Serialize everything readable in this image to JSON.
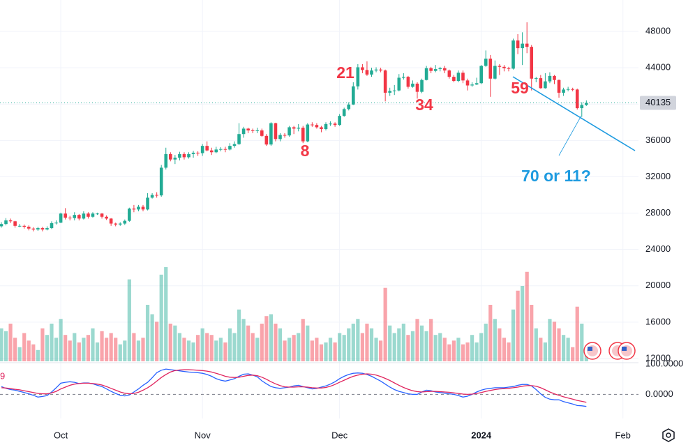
{
  "chart_data": {
    "type": "candlestick",
    "categories": [
      null,
      null,
      null,
      null,
      null,
      null,
      null,
      null,
      null,
      null,
      null,
      null,
      null,
      null,
      null,
      null,
      null,
      null,
      null,
      null,
      null,
      null,
      null,
      null,
      null,
      null,
      null,
      null,
      null,
      null,
      null,
      null,
      null,
      null,
      null,
      null,
      null,
      null,
      null,
      null,
      null,
      null,
      null,
      null,
      null,
      null,
      null,
      null,
      null,
      null,
      null,
      null,
      null,
      null,
      null,
      null,
      null,
      null,
      null,
      null,
      null,
      null,
      null,
      null,
      null,
      null,
      null,
      null,
      null,
      null,
      null,
      null,
      null,
      null,
      null,
      null,
      null,
      null,
      null,
      null,
      null,
      null,
      null,
      null,
      null,
      null,
      null,
      null,
      null,
      null,
      null,
      null,
      null,
      null,
      null,
      null,
      null,
      null,
      null,
      null,
      null,
      null,
      null,
      null,
      null,
      null,
      null,
      null,
      null,
      null,
      null,
      null,
      null,
      null,
      null,
      null,
      null,
      null,
      null,
      null,
      null,
      null,
      null,
      null,
      null,
      null,
      null,
      null,
      null
    ],
    "open": [
      26550,
      26800,
      27200,
      27100,
      26600,
      26600,
      26500,
      26300,
      26200,
      26350,
      26200,
      26350,
      26900,
      26950,
      27950,
      27500,
      27450,
      27800,
      27400,
      27950,
      27600,
      27950,
      27950,
      27600,
      27400,
      26850,
      26750,
      26850,
      27150,
      28500,
      28400,
      28700,
      28400,
      29700,
      30000,
      29950,
      33000,
      34500,
      33900,
      34100,
      34500,
      34150,
      34500,
      34650,
      34600,
      35400,
      34900,
      34700,
      35000,
      35050,
      35000,
      35400,
      35600,
      36700,
      37300,
      37100,
      37050,
      37100,
      36500,
      35550,
      37900,
      36150,
      36600,
      36550,
      37450,
      37300,
      37400,
      35900,
      37750,
      37700,
      37450,
      37250,
      37800,
      37850,
      37700,
      38700,
      39450,
      39950,
      41950,
      44050,
      43750,
      43250,
      43700,
      43800,
      43700,
      41250,
      41450,
      41500,
      42900,
      43000,
      41900,
      42250,
      41350,
      42650,
      43950,
      43650,
      43850,
      43950,
      43700,
      43000,
      42550,
      43450,
      42600,
      42050,
      42150,
      42300,
      44200,
      45000,
      42800,
      44200,
      44100,
      43950,
      43900,
      47000,
      46150,
      46650,
      46300,
      42800,
      42850,
      41750,
      42500,
      43100,
      42650,
      41250,
      41600,
      41650,
      41600,
      39550,
      39900
    ],
    "high": [
      27000,
      27450,
      27400,
      27150,
      26800,
      26750,
      26650,
      26450,
      26500,
      26500,
      26550,
      27100,
      27200,
      28050,
      28550,
      27700,
      28100,
      27900,
      28200,
      28100,
      28100,
      28050,
      28000,
      27750,
      27450,
      26950,
      27000,
      27300,
      28600,
      28900,
      28900,
      28900,
      30200,
      30200,
      30300,
      33300,
      35200,
      34700,
      34400,
      34750,
      34700,
      34700,
      34850,
      34800,
      35600,
      35900,
      35200,
      35300,
      35250,
      35300,
      35700,
      35900,
      37900,
      37500,
      37400,
      37300,
      37400,
      37300,
      36700,
      38000,
      37950,
      36800,
      36800,
      37600,
      37600,
      37800,
      37600,
      37900,
      38000,
      37900,
      37600,
      38000,
      38100,
      38000,
      38900,
      39600,
      40200,
      42400,
      44400,
      44400,
      44700,
      44000,
      44050,
      44000,
      43800,
      41800,
      42100,
      43300,
      43400,
      43100,
      42600,
      42400,
      42800,
      44200,
      44100,
      44300,
      44100,
      44200,
      43800,
      43200,
      43700,
      43700,
      42800,
      42400,
      42900,
      44300,
      45900,
      45400,
      44800,
      44400,
      44300,
      44100,
      47200,
      47700,
      47900,
      49000,
      46500,
      43000,
      43200,
      43400,
      43500,
      43200,
      42700,
      41800,
      41900,
      41800,
      41700,
      40200,
      40400
    ],
    "low": [
      26400,
      26650,
      26900,
      26400,
      26450,
      26300,
      26100,
      26000,
      26050,
      26000,
      26100,
      26250,
      26750,
      26900,
      27300,
      27200,
      27200,
      27200,
      27300,
      27400,
      27500,
      27800,
      27400,
      27250,
      26600,
      26550,
      26600,
      26700,
      27050,
      28100,
      28200,
      28200,
      28300,
      29600,
      29700,
      29800,
      32800,
      33700,
      33400,
      33800,
      33900,
      34000,
      34100,
      34300,
      34300,
      34800,
      34400,
      34600,
      34800,
      34700,
      34900,
      35200,
      35500,
      36300,
      36800,
      36800,
      36800,
      36400,
      35400,
      35400,
      35900,
      35900,
      36300,
      36400,
      36700,
      37000,
      35700,
      35800,
      37500,
      37300,
      36900,
      37100,
      37600,
      37500,
      37600,
      38600,
      39300,
      39900,
      41600,
      43400,
      43100,
      43000,
      43500,
      43500,
      40300,
      40900,
      41000,
      41400,
      42700,
      41700,
      41800,
      40600,
      41200,
      42600,
      43400,
      43500,
      43600,
      43400,
      42800,
      42400,
      42400,
      42300,
      41500,
      41900,
      42100,
      42200,
      44100,
      40800,
      42700,
      43200,
      43600,
      43600,
      43800,
      45500,
      44300,
      45600,
      41500,
      42400,
      41700,
      41700,
      42300,
      42200,
      40700,
      40900,
      41400,
      41400,
      39400,
      38600,
      39800
    ],
    "close": [
      26800,
      27200,
      27100,
      26600,
      26600,
      26500,
      26300,
      26200,
      26350,
      26200,
      26350,
      26900,
      26950,
      27950,
      27500,
      27450,
      27800,
      27400,
      27950,
      27600,
      27950,
      27950,
      27600,
      27400,
      26850,
      26750,
      26850,
      27150,
      28500,
      28400,
      28700,
      28400,
      29700,
      30000,
      29950,
      33000,
      34500,
      33900,
      34100,
      34500,
      34150,
      34500,
      34650,
      34600,
      35400,
      34900,
      34700,
      35000,
      35050,
      35000,
      35400,
      35600,
      36700,
      37300,
      37100,
      37050,
      37100,
      36500,
      35550,
      37900,
      36150,
      36600,
      36550,
      37450,
      37300,
      37400,
      35900,
      37750,
      37700,
      37450,
      37250,
      37800,
      37850,
      37700,
      38700,
      39450,
      39950,
      41950,
      44050,
      43750,
      43250,
      43700,
      43800,
      43700,
      41250,
      41450,
      41500,
      42900,
      43000,
      41900,
      42250,
      41350,
      42650,
      43950,
      43650,
      43850,
      43950,
      43700,
      43000,
      42550,
      43450,
      42600,
      42050,
      42150,
      42300,
      44200,
      45000,
      42800,
      44200,
      44100,
      43950,
      43900,
      47000,
      46150,
      46650,
      46300,
      42800,
      42850,
      41750,
      42500,
      43100,
      42650,
      41250,
      41600,
      41650,
      41600,
      39550,
      39900,
      40135
    ],
    "up_color": "#22ab94",
    "down_color": "#f23645",
    "xlim": [
      -0.3,
      139.4
    ],
    "xticks": [
      {
        "value": 13,
        "label": "Oct"
      },
      {
        "value": 44,
        "label": "Nov"
      },
      {
        "value": 74,
        "label": "Dec"
      },
      {
        "value": 105,
        "label": "2024",
        "bold": true
      },
      {
        "value": 136,
        "label": "Feb"
      }
    ],
    "ylim": [
      11540,
      51454
    ],
    "yticks": [
      12000,
      16000,
      20000,
      24000,
      28000,
      32000,
      36000,
      40000,
      44000,
      48000
    ],
    "grid": true,
    "last_price": 40135,
    "volume": {
      "vlim": [
        0,
        100
      ],
      "values": [
        35,
        32,
        40,
        25,
        15,
        30,
        22,
        18,
        12,
        35,
        28,
        40,
        25,
        45,
        28,
        22,
        30,
        20,
        25,
        28,
        35,
        20,
        32,
        25,
        30,
        25,
        18,
        22,
        87,
        30,
        22,
        25,
        60,
        50,
        42,
        92,
        100,
        40,
        38,
        30,
        25,
        22,
        20,
        28,
        35,
        30,
        28,
        22,
        25,
        20,
        35,
        30,
        55,
        45,
        38,
        30,
        25,
        40,
        48,
        50,
        40,
        35,
        22,
        25,
        28,
        30,
        45,
        38,
        22,
        25,
        18,
        20,
        25,
        20,
        30,
        28,
        35,
        40,
        45,
        30,
        40,
        35,
        25,
        22,
        78,
        38,
        30,
        35,
        40,
        28,
        32,
        45,
        38,
        32,
        45,
        28,
        30,
        25,
        18,
        22,
        25,
        18,
        20,
        28,
        20,
        30,
        40,
        60,
        45,
        35,
        25,
        20,
        55,
        75,
        80,
        95,
        60,
        35,
        25,
        20,
        45,
        42,
        35,
        28,
        25,
        15,
        58,
        40,
        12
      ]
    },
    "oscillator": {
      "label": "9",
      "ylim": [
        -80,
        112
      ],
      "yticks": [
        {
          "value": 100,
          "label": "100.0000"
        },
        {
          "value": 0,
          "label": "0.0000"
        }
      ],
      "series": [
        {
          "color": "#2962ff",
          "values": [
            26,
            20,
            16,
            14,
            10,
            6,
            2,
            -3,
            -9,
            -7,
            -4,
            8,
            22,
            37,
            40,
            42,
            40,
            36,
            38,
            38,
            35,
            30,
            26,
            18,
            10,
            3,
            -3,
            -5,
            -2,
            8,
            18,
            30,
            40,
            55,
            72,
            80,
            84,
            82,
            80,
            78,
            76,
            74,
            73,
            72,
            70,
            66,
            60,
            52,
            47,
            44,
            48,
            52,
            60,
            67,
            68,
            64,
            58,
            45,
            35,
            26,
            22,
            20,
            22,
            24,
            28,
            30,
            26,
            22,
            18,
            20,
            24,
            28,
            34,
            42,
            52,
            60,
            66,
            70,
            71,
            70,
            66,
            60,
            52,
            44,
            34,
            24,
            16,
            10,
            6,
            2,
            0,
            0,
            8,
            14,
            12,
            8,
            6,
            4,
            2,
            0,
            -4,
            -9,
            -6,
            0,
            8,
            14,
            18,
            20,
            22,
            22,
            22,
            24,
            26,
            30,
            33,
            33,
            28,
            16,
            2,
            -10,
            -16,
            -18,
            -18,
            -24,
            -28,
            -32,
            -37,
            -38,
            -40
          ]
        },
        {
          "color": "#e0245e",
          "values": [
            22,
            21,
            19,
            17,
            15,
            12,
            9,
            6,
            3,
            2,
            2,
            5,
            10,
            18,
            24,
            30,
            34,
            36,
            37,
            37,
            36,
            34,
            31,
            26,
            20,
            14,
            8,
            4,
            2,
            3,
            7,
            14,
            22,
            32,
            44,
            56,
            66,
            74,
            79,
            81,
            82,
            82,
            81,
            80,
            79,
            77,
            74,
            70,
            65,
            60,
            57,
            56,
            57,
            60,
            63,
            64,
            62,
            57,
            50,
            42,
            35,
            29,
            25,
            24,
            24,
            25,
            25,
            24,
            22,
            21,
            21,
            23,
            27,
            33,
            40,
            47,
            54,
            60,
            64,
            67,
            68,
            67,
            64,
            59,
            53,
            46,
            38,
            30,
            23,
            17,
            12,
            9,
            8,
            9,
            10,
            10,
            9,
            8,
            7,
            5,
            3,
            1,
            0,
            1,
            3,
            6,
            10,
            13,
            16,
            18,
            19,
            20,
            22,
            24,
            27,
            29,
            29,
            27,
            22,
            15,
            8,
            2,
            -3,
            -8,
            -12,
            -16,
            -20,
            -23,
            -26
          ]
        }
      ]
    },
    "annotations": [
      {
        "text": "21",
        "color": "#f23645"
      },
      {
        "text": "34",
        "color": "#f23645"
      },
      {
        "text": "59",
        "color": "#f23645"
      },
      {
        "text": "8",
        "color": "#f23645"
      },
      {
        "text": "70 or 11?",
        "color": "#1e9be0"
      }
    ]
  }
}
